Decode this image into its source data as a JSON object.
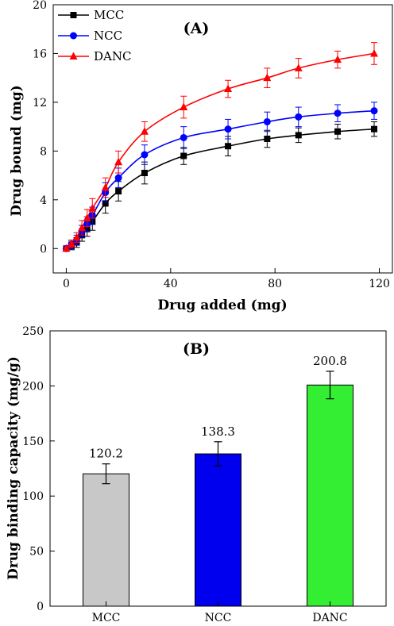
{
  "chart_data": [
    {
      "type": "line",
      "panel_label": "(A)",
      "xlabel": "Drug added (mg)",
      "ylabel": "Drug bound (mg)",
      "xlim": [
        -5,
        125
      ],
      "ylim": [
        -2,
        20
      ],
      "xticks": [
        0,
        40,
        80,
        120
      ],
      "yticks": [
        0,
        4,
        8,
        12,
        16,
        20
      ],
      "legend_position": "top-left",
      "x": [
        0,
        2,
        4,
        6,
        8,
        10,
        15,
        20,
        30,
        45,
        62,
        77,
        89,
        104,
        118
      ],
      "series": [
        {
          "name": "MCC",
          "color": "#000000",
          "marker": "square",
          "values": [
            0,
            0.2,
            0.5,
            1.1,
            1.6,
            2.2,
            3.7,
            4.7,
            6.2,
            7.6,
            8.4,
            9.0,
            9.3,
            9.6,
            9.8
          ],
          "errors": [
            0.1,
            0.3,
            0.4,
            0.5,
            0.6,
            0.7,
            0.8,
            0.8,
            0.9,
            0.7,
            0.8,
            0.7,
            0.6,
            0.6,
            0.6
          ]
        },
        {
          "name": "NCC",
          "color": "#0000ff",
          "marker": "circle",
          "values": [
            0,
            0.3,
            0.7,
            1.4,
            2.0,
            2.7,
            4.6,
            5.8,
            7.7,
            9.1,
            9.8,
            10.4,
            10.8,
            11.1,
            11.3
          ],
          "errors": [
            0.1,
            0.3,
            0.4,
            0.5,
            0.6,
            0.7,
            0.8,
            0.8,
            0.8,
            0.9,
            0.8,
            0.8,
            0.8,
            0.7,
            0.7
          ]
        },
        {
          "name": "DANC",
          "color": "#ff0000",
          "marker": "triangle",
          "values": [
            0,
            0.4,
            0.9,
            1.7,
            2.5,
            3.3,
            5.0,
            7.1,
            9.6,
            11.6,
            13.1,
            14.0,
            14.8,
            15.5,
            16.0
          ],
          "errors": [
            0.1,
            0.3,
            0.4,
            0.6,
            0.7,
            0.8,
            0.8,
            0.9,
            0.8,
            0.9,
            0.7,
            0.8,
            0.8,
            0.7,
            0.9
          ]
        }
      ]
    },
    {
      "type": "bar",
      "panel_label": "(B)",
      "xlabel": "",
      "ylabel": "Drug binding capacity (mg/g)",
      "ylim": [
        0,
        250
      ],
      "yticks": [
        0,
        50,
        100,
        150,
        200,
        250
      ],
      "categories": [
        "MCC",
        "NCC",
        "DANC"
      ],
      "values": [
        120.2,
        138.3,
        200.8
      ],
      "value_labels": [
        "120.2",
        "138.3",
        "200.8"
      ],
      "errors": [
        9,
        11,
        12.5
      ],
      "colors": [
        "#c8c8c8",
        "#0000ee",
        "#33ee33"
      ]
    }
  ]
}
